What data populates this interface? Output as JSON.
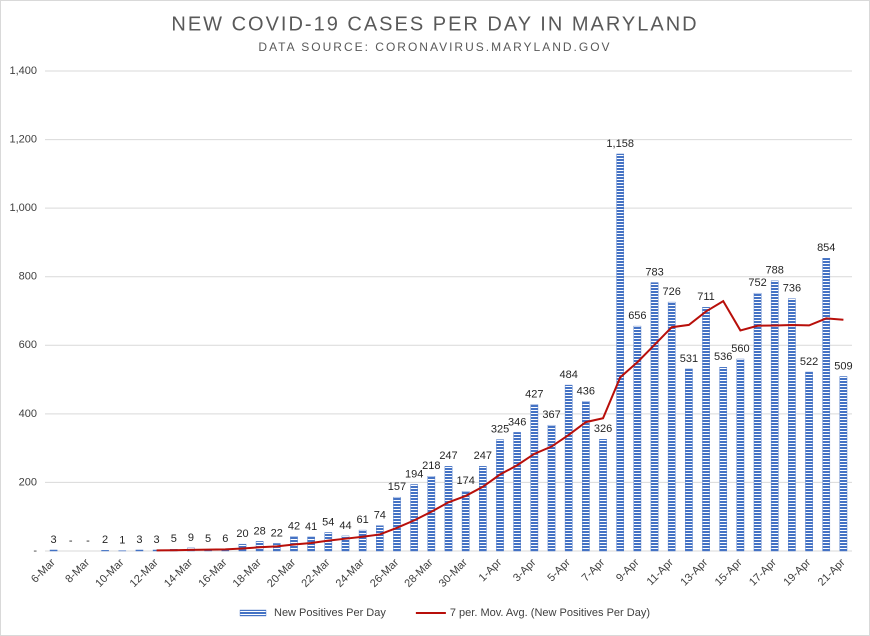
{
  "chart_data": {
    "type": "bar",
    "title": "NEW COVID-19 CASES PER DAY IN MARYLAND",
    "subtitle": "DATA SOURCE: CORONAVIRUS.MARYLAND.GOV",
    "categories": [
      "6-Mar",
      null,
      "8-Mar",
      null,
      "10-Mar",
      null,
      "12-Mar",
      null,
      "14-Mar",
      null,
      "16-Mar",
      null,
      "18-Mar",
      null,
      "20-Mar",
      null,
      "22-Mar",
      null,
      "24-Mar",
      null,
      "26-Mar",
      null,
      "28-Mar",
      null,
      "30-Mar",
      null,
      "1-Apr",
      null,
      "3-Apr",
      null,
      "5-Apr",
      null,
      "7-Apr",
      null,
      "9-Apr",
      null,
      "11-Apr",
      null,
      "13-Apr",
      null,
      "15-Apr",
      null,
      "17-Apr",
      null,
      "19-Apr",
      null,
      "21-Apr"
    ],
    "series": [
      {
        "name": "New Positives Per Day",
        "type": "bar",
        "color": "#4472c4",
        "values": [
          3,
          0,
          0,
          2,
          1,
          3,
          3,
          5,
          9,
          5,
          6,
          20,
          28,
          22,
          42,
          41,
          54,
          44,
          61,
          74,
          157,
          194,
          218,
          247,
          174,
          247,
          325,
          346,
          427,
          367,
          484,
          436,
          326,
          1158,
          656,
          783,
          726,
          531,
          711,
          536,
          560,
          752,
          788,
          736,
          522,
          854,
          509
        ],
        "value_labels": [
          "3",
          "-",
          "-",
          "2",
          "1",
          "3",
          "3",
          "5",
          "9",
          "5",
          "6",
          "20",
          "28",
          "22",
          "42",
          "41",
          "54",
          "44",
          "61",
          "74",
          "157",
          "194",
          "218",
          "247",
          "174",
          "247",
          "325",
          "346",
          "427",
          "367",
          "484",
          "436",
          "326",
          "1,158",
          "656",
          "783",
          "726",
          "531",
          "711",
          "536",
          "560",
          "752",
          "788",
          "736",
          "522",
          "854",
          "509"
        ]
      },
      {
        "name": "7 per. Mov. Avg. (New Positives Per Day)",
        "type": "line",
        "color": "#b80f0a",
        "values": [
          null,
          null,
          null,
          null,
          null,
          null,
          1.7,
          2,
          3.3,
          4,
          4.6,
          7.3,
          10.9,
          13.6,
          18.9,
          23.4,
          30.4,
          35.9,
          41.7,
          48.3,
          67.6,
          89.3,
          114.6,
          142.1,
          160.7,
          187.3,
          223.1,
          250.1,
          283.4,
          304.7,
          338.6,
          376,
          387.3,
          506.3,
          550.6,
          601.4,
          652.7,
          659.4,
          698.7,
          728.7,
          643.3,
          657,
          657.7,
          659.1,
          657.9,
          678.3,
          674.4
        ]
      }
    ],
    "ylim": [
      0,
      1400
    ],
    "yticks": [
      {
        "value": 0,
        "label": "-"
      },
      200,
      400,
      600,
      800,
      {
        "value": 1000,
        "label": "1,000"
      },
      {
        "value": 1200,
        "label": "1,200"
      },
      {
        "value": 1400,
        "label": "1,400"
      }
    ],
    "grid": true,
    "legend": "bottom"
  }
}
